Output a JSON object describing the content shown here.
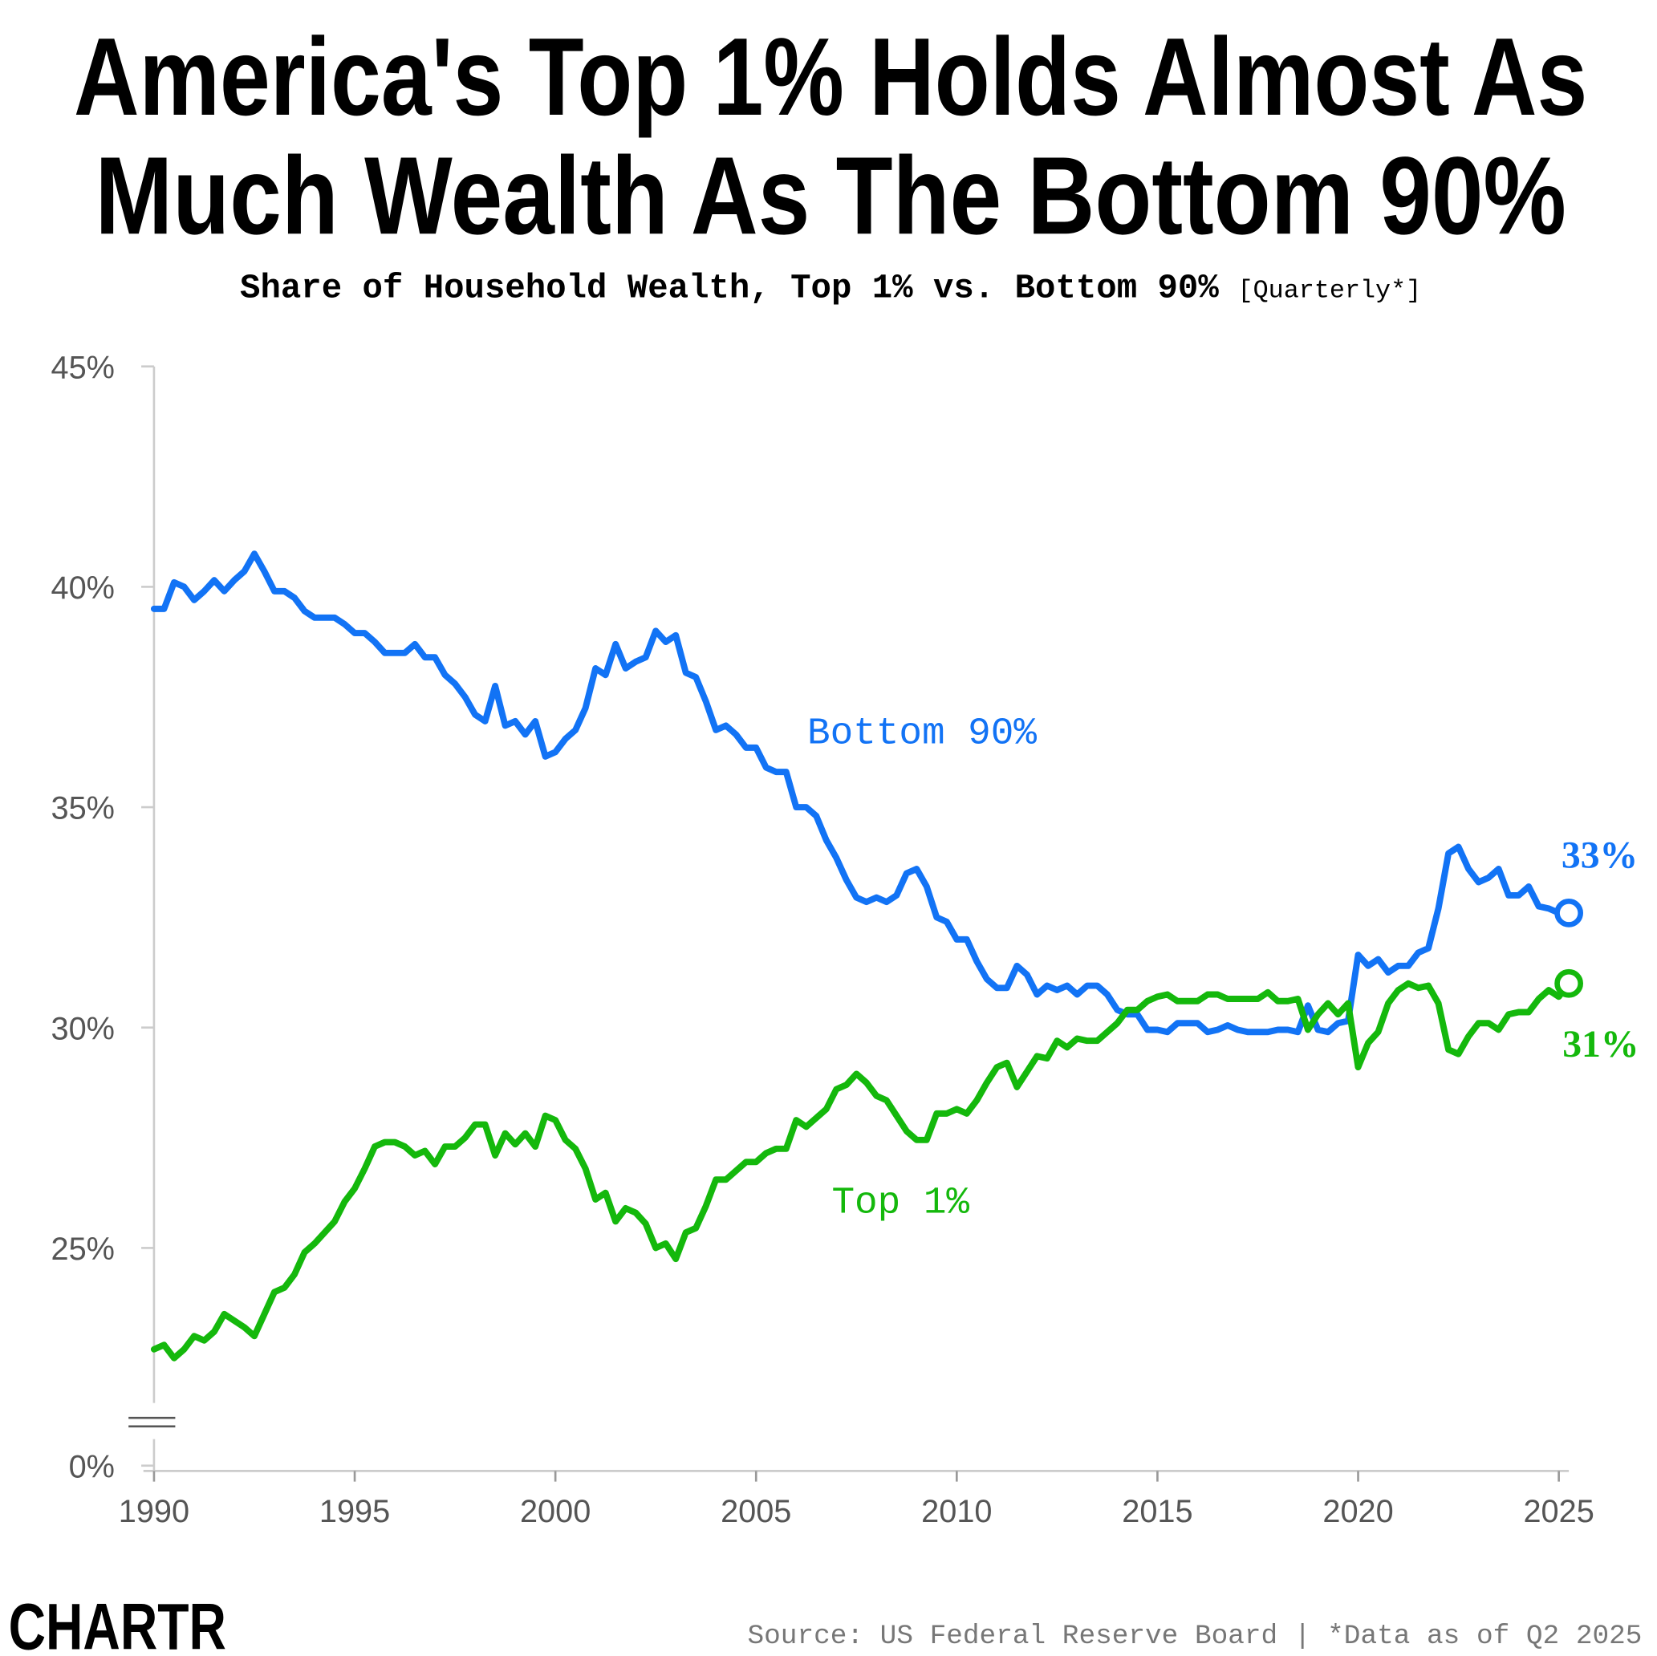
{
  "chart_data": {
    "type": "line",
    "title": [
      "America's Top 1% Holds Almost As",
      "Much Wealth As The Bottom 90%"
    ],
    "subtitle": "Share of Household Wealth, Top 1% vs. Bottom 90%",
    "subtitle_note": "[Quarterly*]",
    "source": "Source: US Federal Reserve Board | *Data as of Q2 2025",
    "brand": "CHARTR",
    "x": [
      1990,
      1990.25,
      1990.5,
      1990.75,
      1991,
      1991.25,
      1991.5,
      1991.75,
      1992,
      1992.25,
      1992.5,
      1992.75,
      1993,
      1993.25,
      1993.5,
      1993.75,
      1994,
      1994.25,
      1994.5,
      1994.75,
      1995,
      1995.25,
      1995.5,
      1995.75,
      1996,
      1996.25,
      1996.5,
      1996.75,
      1997,
      1997.25,
      1997.5,
      1997.75,
      1998,
      1998.25,
      1998.5,
      1998.75,
      1999,
      1999.25,
      1999.5,
      1999.75,
      2000,
      2000.25,
      2000.5,
      2000.75,
      2001,
      2001.25,
      2001.5,
      2001.75,
      2002,
      2002.25,
      2002.5,
      2002.75,
      2003,
      2003.25,
      2003.5,
      2003.75,
      2004,
      2004.25,
      2004.5,
      2004.75,
      2005,
      2005.25,
      2005.5,
      2005.75,
      2006,
      2006.25,
      2006.5,
      2006.75,
      2007,
      2007.25,
      2007.5,
      2007.75,
      2008,
      2008.25,
      2008.5,
      2008.75,
      2009,
      2009.25,
      2009.5,
      2009.75,
      2010,
      2010.25,
      2010.5,
      2010.75,
      2011,
      2011.25,
      2011.5,
      2011.75,
      2012,
      2012.25,
      2012.5,
      2012.75,
      2013,
      2013.25,
      2013.5,
      2013.75,
      2014,
      2014.25,
      2014.5,
      2014.75,
      2015,
      2015.25,
      2015.5,
      2015.75,
      2016,
      2016.25,
      2016.5,
      2016.75,
      2017,
      2017.25,
      2017.5,
      2017.75,
      2018,
      2018.25,
      2018.5,
      2018.75,
      2019,
      2019.25,
      2019.5,
      2019.75,
      2020,
      2020.25,
      2020.5,
      2020.75,
      2021,
      2021.25,
      2021.5,
      2021.75,
      2022,
      2022.25,
      2022.5,
      2022.75,
      2023,
      2023.25,
      2023.5,
      2023.75,
      2024,
      2024.25,
      2024.5,
      2024.75,
      2025,
      2025.25
    ],
    "series": [
      {
        "name": "Bottom 90%",
        "color": "#1273f5",
        "last_label": "33%",
        "values": [
          39.5,
          39.5,
          40.1,
          40.0,
          39.7,
          39.9,
          40.15,
          39.9,
          40.15,
          40.35,
          40.75,
          40.35,
          39.9,
          39.9,
          39.75,
          39.45,
          39.3,
          39.3,
          39.3,
          39.15,
          38.95,
          38.95,
          38.75,
          38.5,
          38.5,
          38.5,
          38.7,
          38.4,
          38.4,
          38.0,
          37.8,
          37.5,
          37.1,
          36.95,
          37.75,
          36.85,
          36.95,
          36.65,
          36.95,
          36.15,
          36.25,
          36.55,
          36.75,
          37.25,
          38.15,
          38.0,
          38.7,
          38.15,
          38.3,
          38.4,
          39.0,
          38.75,
          38.9,
          38.05,
          37.95,
          37.4,
          36.75,
          36.85,
          36.65,
          36.35,
          36.35,
          35.9,
          35.8,
          35.8,
          35.0,
          35.0,
          34.8,
          34.25,
          33.85,
          33.35,
          32.95,
          32.85,
          32.95,
          32.85,
          33.0,
          33.5,
          33.6,
          33.2,
          32.5,
          32.4,
          32.0,
          32.0,
          31.5,
          31.1,
          30.9,
          30.9,
          31.4,
          31.2,
          30.75,
          30.95,
          30.85,
          30.95,
          30.75,
          30.95,
          30.95,
          30.75,
          30.4,
          30.3,
          30.3,
          29.95,
          29.95,
          29.9,
          30.1,
          30.1,
          30.1,
          29.9,
          29.95,
          30.05,
          29.95,
          29.9,
          29.9,
          29.9,
          29.95,
          29.95,
          29.9,
          30.5,
          29.95,
          29.9,
          30.1,
          30.15,
          31.65,
          31.4,
          31.55,
          31.25,
          31.4,
          31.4,
          31.7,
          31.8,
          32.7,
          33.95,
          34.1,
          33.6,
          33.3,
          33.4,
          33.6,
          33.0,
          33.0,
          33.2,
          32.75,
          32.7,
          32.6,
          32.6
        ]
      },
      {
        "name": "Top 1%",
        "color": "#14b80c",
        "last_label": "31%",
        "values": [
          22.7,
          22.8,
          22.5,
          22.7,
          23.0,
          22.9,
          23.1,
          23.5,
          23.35,
          23.2,
          23.0,
          23.5,
          24.0,
          24.1,
          24.4,
          24.9,
          25.1,
          25.35,
          25.6,
          26.05,
          26.35,
          26.8,
          27.3,
          27.4,
          27.4,
          27.3,
          27.1,
          27.2,
          26.9,
          27.3,
          27.3,
          27.5,
          27.8,
          27.8,
          27.1,
          27.6,
          27.35,
          27.6,
          27.3,
          28.0,
          27.9,
          27.45,
          27.25,
          26.8,
          26.1,
          26.25,
          25.6,
          25.9,
          25.8,
          25.55,
          25.0,
          25.1,
          24.75,
          25.35,
          25.45,
          25.95,
          26.55,
          26.55,
          26.75,
          26.95,
          26.95,
          27.15,
          27.25,
          27.25,
          27.9,
          27.75,
          27.95,
          28.15,
          28.6,
          28.7,
          28.95,
          28.75,
          28.45,
          28.35,
          28.0,
          27.65,
          27.45,
          27.45,
          28.05,
          28.05,
          28.15,
          28.05,
          28.35,
          28.75,
          29.1,
          29.2,
          28.65,
          29.0,
          29.35,
          29.3,
          29.7,
          29.55,
          29.75,
          29.7,
          29.7,
          29.9,
          30.1,
          30.4,
          30.4,
          30.6,
          30.7,
          30.75,
          30.6,
          30.6,
          30.6,
          30.75,
          30.75,
          30.65,
          30.65,
          30.65,
          30.65,
          30.8,
          30.6,
          30.6,
          30.65,
          29.95,
          30.3,
          30.55,
          30.3,
          30.55,
          29.1,
          29.65,
          29.9,
          30.55,
          30.85,
          31.0,
          30.9,
          30.95,
          30.55,
          29.5,
          29.4,
          29.8,
          30.1,
          30.1,
          29.95,
          30.3,
          30.35,
          30.35,
          30.65,
          30.85,
          30.7,
          31.0
        ]
      }
    ],
    "xlim": [
      1990,
      2025.25
    ],
    "xticks": [
      1990,
      1995,
      2000,
      2005,
      2010,
      2015,
      2020,
      2025
    ],
    "ylim": [
      0,
      45
    ],
    "y_break": [
      0,
      21
    ],
    "yticks": [
      {
        "value": 0,
        "label": "0%"
      },
      {
        "value": 25,
        "label": "25%"
      },
      {
        "value": 30,
        "label": "30%"
      },
      {
        "value": 35,
        "label": "35%"
      },
      {
        "value": 40,
        "label": "40%"
      },
      {
        "value": 45,
        "label": "45%"
      }
    ],
    "grid": false
  }
}
